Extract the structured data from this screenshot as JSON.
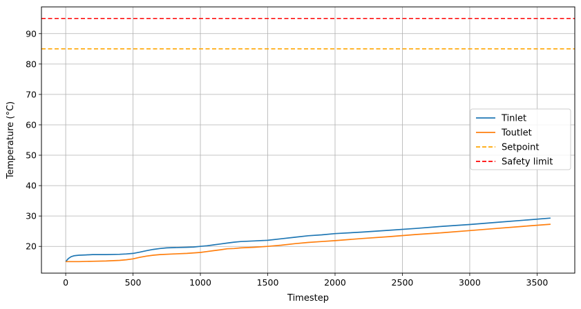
{
  "chart_data": {
    "type": "line",
    "title": "",
    "xlabel": "Timestep",
    "ylabel": "Temperature (°C)",
    "xlim": [
      -180,
      3780
    ],
    "ylim": [
      11.2,
      98.8
    ],
    "xticks": [
      0,
      500,
      1000,
      1500,
      2000,
      2500,
      3000,
      3500
    ],
    "yticks": [
      20,
      30,
      40,
      50,
      60,
      70,
      80,
      90
    ],
    "grid": true,
    "legend_position": "center-right",
    "series": [
      {
        "name": "Tinlet",
        "color": "#1f77b4",
        "style": "solid",
        "x": [
          0,
          20,
          40,
          60,
          80,
          100,
          150,
          200,
          300,
          400,
          450,
          500,
          550,
          600,
          650,
          700,
          750,
          800,
          900,
          950,
          1000,
          1050,
          1100,
          1150,
          1200,
          1250,
          1300,
          1400,
          1500,
          1600,
          1700,
          1800,
          1900,
          2000,
          2200,
          2400,
          2600,
          2800,
          3000,
          3200,
          3400,
          3600
        ],
        "y": [
          15.0,
          16.0,
          16.6,
          16.9,
          17.0,
          17.1,
          17.2,
          17.3,
          17.3,
          17.4,
          17.5,
          17.7,
          18.1,
          18.6,
          19.0,
          19.3,
          19.5,
          19.6,
          19.7,
          19.8,
          20.0,
          20.2,
          20.5,
          20.8,
          21.1,
          21.4,
          21.6,
          21.8,
          22.0,
          22.5,
          23.0,
          23.5,
          23.8,
          24.2,
          24.7,
          25.3,
          25.9,
          26.6,
          27.2,
          27.9,
          28.6,
          29.3
        ]
      },
      {
        "name": "Toutlet",
        "color": "#ff7f0e",
        "style": "solid",
        "x": [
          0,
          100,
          200,
          300,
          400,
          450,
          500,
          550,
          600,
          650,
          700,
          800,
          900,
          1000,
          1050,
          1100,
          1150,
          1200,
          1250,
          1300,
          1400,
          1500,
          1600,
          1700,
          1800,
          1900,
          2000,
          2200,
          2400,
          2600,
          2800,
          3000,
          3200,
          3400,
          3600
        ],
        "y": [
          15.0,
          15.0,
          15.1,
          15.2,
          15.4,
          15.6,
          15.9,
          16.4,
          16.8,
          17.1,
          17.3,
          17.5,
          17.7,
          18.0,
          18.3,
          18.6,
          18.9,
          19.2,
          19.3,
          19.5,
          19.7,
          20.0,
          20.4,
          20.9,
          21.3,
          21.6,
          21.9,
          22.6,
          23.2,
          23.9,
          24.5,
          25.2,
          25.9,
          26.6,
          27.3
        ]
      },
      {
        "name": "Setpoint",
        "color": "#ffa500",
        "style": "dashed",
        "y_constant": 85
      },
      {
        "name": "Safety limit",
        "color": "#ff0000",
        "style": "dashed",
        "y_constant": 95
      }
    ]
  }
}
